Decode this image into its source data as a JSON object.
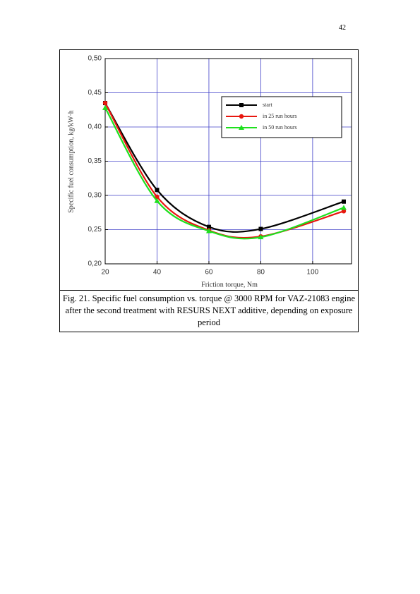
{
  "page_number": "42",
  "chart_data": {
    "type": "line",
    "x_label": "Friction torque, Nm",
    "y_label": "Specific fuel consumption, kg/kW·h",
    "x": [
      20,
      40,
      60,
      80,
      112
    ],
    "series": [
      {
        "name": "start",
        "color": "#000000",
        "marker": "square",
        "values": [
          0.435,
          0.308,
          0.254,
          0.251,
          0.291
        ]
      },
      {
        "name": "in 25 run hours",
        "color": "#e8170f",
        "marker": "circle",
        "values": [
          0.435,
          0.298,
          0.249,
          0.24,
          0.277
        ]
      },
      {
        "name": "in 50 run hours",
        "color": "#1ee01e",
        "marker": "triangle",
        "values": [
          0.428,
          0.292,
          0.248,
          0.239,
          0.282
        ]
      }
    ],
    "xlim": [
      20,
      115
    ],
    "xticks": [
      20,
      40,
      60,
      80,
      100
    ],
    "ylim": [
      0.2,
      0.5
    ],
    "yticks": [
      {
        "value": 0.2,
        "label": "0,20"
      },
      {
        "value": 0.25,
        "label": "0,25"
      },
      {
        "value": 0.3,
        "label": "0,30"
      },
      {
        "value": 0.35,
        "label": "0,35"
      },
      {
        "value": 0.4,
        "label": "0,40"
      },
      {
        "value": 0.45,
        "label": "0,45"
      },
      {
        "value": 0.5,
        "label": "0,50"
      }
    ],
    "grid": true,
    "grid_color": "#4040c8",
    "legend": "upper-right"
  },
  "caption": "Fig. 21. Specific fuel consumption vs. torque @ 3000 RPM for VAZ-21083 engine after the second treatment with RESURS NEXT additive, depending on exposure period"
}
